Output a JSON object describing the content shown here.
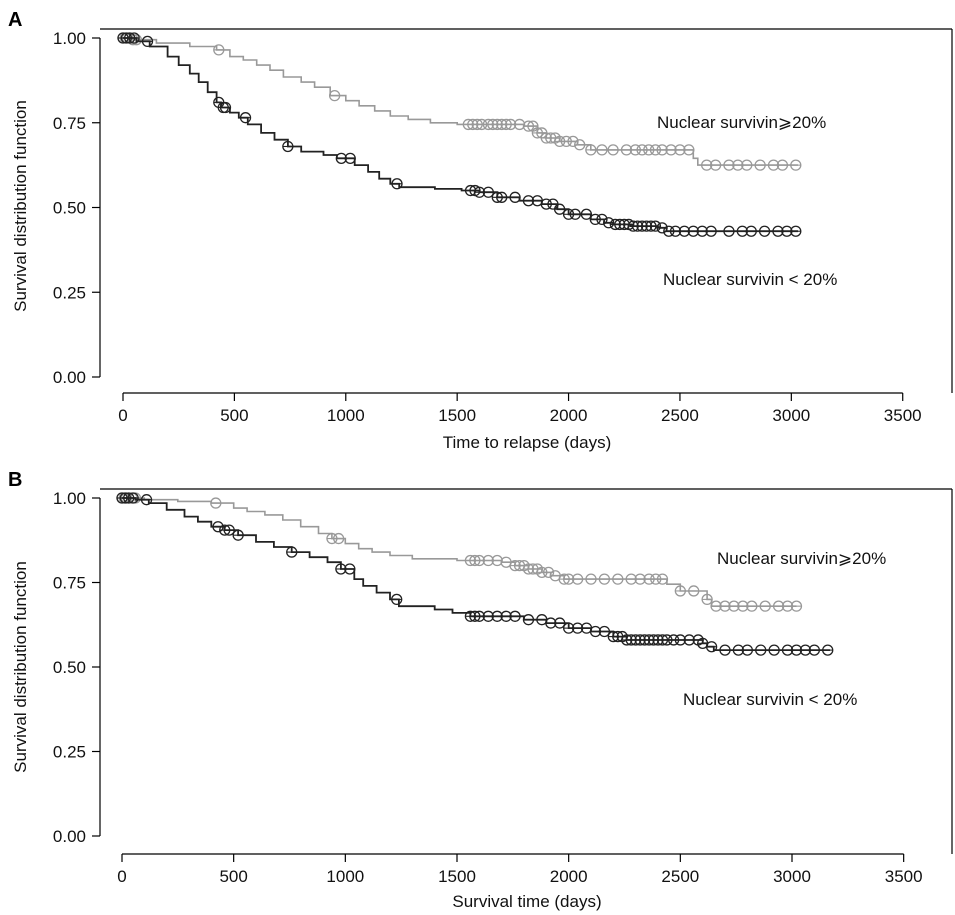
{
  "chart_data": [
    {
      "type": "line",
      "panel_label": "A",
      "xlabel": "Time to relapse (days)",
      "ylabel": "Survival distribution function",
      "xlim": [
        0,
        3600
      ],
      "ylim": [
        0,
        1
      ],
      "x_ticks": [
        0,
        500,
        1000,
        1500,
        2000,
        2500,
        3000,
        3500
      ],
      "y_ticks": [
        "0.00",
        "0.25",
        "0.50",
        "0.75",
        "1.00"
      ],
      "grid": false,
      "series": [
        {
          "name": "Nuclear survivin⩾20%",
          "color": "#999999",
          "steps": [
            [
              0,
              1.0
            ],
            [
              40,
              0.995
            ],
            [
              150,
              0.985
            ],
            [
              300,
              0.975
            ],
            [
              420,
              0.965
            ],
            [
              480,
              0.945
            ],
            [
              540,
              0.935
            ],
            [
              600,
              0.92
            ],
            [
              660,
              0.905
            ],
            [
              720,
              0.885
            ],
            [
              800,
              0.87
            ],
            [
              860,
              0.855
            ],
            [
              930,
              0.83
            ],
            [
              1000,
              0.815
            ],
            [
              1060,
              0.8
            ],
            [
              1130,
              0.785
            ],
            [
              1200,
              0.77
            ],
            [
              1280,
              0.76
            ],
            [
              1380,
              0.75
            ],
            [
              1500,
              0.745
            ],
            [
              1800,
              0.74
            ],
            [
              1860,
              0.72
            ],
            [
              1900,
              0.705
            ],
            [
              1960,
              0.695
            ],
            [
              2040,
              0.685
            ],
            [
              2100,
              0.67
            ],
            [
              2500,
              0.67
            ],
            [
              2560,
              0.645
            ],
            [
              2580,
              0.625
            ],
            [
              3030,
              0.625
            ]
          ],
          "censored": [
            0,
            10,
            20,
            30,
            45,
            60,
            430,
            950,
            1550,
            1570,
            1590,
            1610,
            1640,
            1660,
            1680,
            1700,
            1720,
            1740,
            1780,
            1820,
            1840,
            1860,
            1880,
            1900,
            1920,
            1940,
            1960,
            1990,
            2020,
            2050,
            2100,
            2150,
            2200,
            2260,
            2300,
            2330,
            2360,
            2390,
            2420,
            2460,
            2500,
            2540,
            2620,
            2660,
            2720,
            2760,
            2800,
            2860,
            2920,
            2960,
            3020
          ],
          "end_label": "Nuclear survivin⩾20%"
        },
        {
          "name": "Nuclear survivin < 20%",
          "color": "#222222",
          "steps": [
            [
              0,
              1.0
            ],
            [
              60,
              0.99
            ],
            [
              120,
              0.975
            ],
            [
              200,
              0.945
            ],
            [
              250,
              0.92
            ],
            [
              300,
              0.895
            ],
            [
              340,
              0.87
            ],
            [
              380,
              0.84
            ],
            [
              420,
              0.81
            ],
            [
              440,
              0.795
            ],
            [
              480,
              0.78
            ],
            [
              520,
              0.765
            ],
            [
              560,
              0.745
            ],
            [
              620,
              0.72
            ],
            [
              680,
              0.7
            ],
            [
              740,
              0.68
            ],
            [
              800,
              0.665
            ],
            [
              900,
              0.655
            ],
            [
              960,
              0.645
            ],
            [
              1040,
              0.625
            ],
            [
              1100,
              0.605
            ],
            [
              1150,
              0.585
            ],
            [
              1200,
              0.57
            ],
            [
              1240,
              0.56
            ],
            [
              1400,
              0.555
            ],
            [
              1520,
              0.55
            ],
            [
              1600,
              0.545
            ],
            [
              1680,
              0.53
            ],
            [
              1780,
              0.52
            ],
            [
              1880,
              0.51
            ],
            [
              1950,
              0.495
            ],
            [
              2000,
              0.48
            ],
            [
              2100,
              0.465
            ],
            [
              2160,
              0.455
            ],
            [
              2200,
              0.45
            ],
            [
              2280,
              0.445
            ],
            [
              2400,
              0.44
            ],
            [
              2440,
              0.43
            ],
            [
              3030,
              0.43
            ]
          ],
          "censored": [
            0,
            15,
            30,
            50,
            110,
            430,
            450,
            460,
            550,
            740,
            980,
            1020,
            1230,
            1560,
            1580,
            1600,
            1640,
            1680,
            1700,
            1760,
            1820,
            1860,
            1900,
            1930,
            1960,
            2000,
            2030,
            2080,
            2120,
            2150,
            2180,
            2210,
            2230,
            2250,
            2270,
            2290,
            2310,
            2330,
            2350,
            2370,
            2390,
            2420,
            2450,
            2480,
            2520,
            2560,
            2600,
            2640,
            2720,
            2780,
            2820,
            2880,
            2940,
            2980,
            3020
          ],
          "end_label": "Nuclear survivin < 20%"
        }
      ]
    },
    {
      "type": "line",
      "panel_label": "B",
      "xlabel": "Survival time (days)",
      "ylabel": "Survival distribution function",
      "xlim": [
        0,
        3600
      ],
      "ylim": [
        0,
        1
      ],
      "x_ticks": [
        0,
        500,
        1000,
        1500,
        2000,
        2500,
        3000,
        3500
      ],
      "y_ticks": [
        "0.00",
        "0.25",
        "0.50",
        "0.75",
        "1.00"
      ],
      "grid": false,
      "series": [
        {
          "name": "Nuclear survivin⩾20%",
          "color": "#999999",
          "steps": [
            [
              0,
              1.0
            ],
            [
              100,
              0.995
            ],
            [
              250,
              0.99
            ],
            [
              400,
              0.985
            ],
            [
              500,
              0.97
            ],
            [
              560,
              0.96
            ],
            [
              640,
              0.95
            ],
            [
              720,
              0.935
            ],
            [
              800,
              0.915
            ],
            [
              880,
              0.895
            ],
            [
              940,
              0.88
            ],
            [
              1000,
              0.865
            ],
            [
              1060,
              0.85
            ],
            [
              1120,
              0.84
            ],
            [
              1200,
              0.83
            ],
            [
              1300,
              0.82
            ],
            [
              1500,
              0.815
            ],
            [
              1700,
              0.81
            ],
            [
              1760,
              0.8
            ],
            [
              1820,
              0.79
            ],
            [
              1880,
              0.78
            ],
            [
              1920,
              0.77
            ],
            [
              1980,
              0.76
            ],
            [
              2420,
              0.76
            ],
            [
              2440,
              0.745
            ],
            [
              2500,
              0.725
            ],
            [
              2620,
              0.7
            ],
            [
              2640,
              0.68
            ],
            [
              3020,
              0.68
            ]
          ],
          "censored": [
            0,
            10,
            20,
            30,
            45,
            60,
            420,
            940,
            970,
            1560,
            1580,
            1600,
            1640,
            1680,
            1720,
            1760,
            1780,
            1800,
            1820,
            1840,
            1860,
            1880,
            1910,
            1940,
            1980,
            2000,
            2040,
            2100,
            2160,
            2220,
            2280,
            2320,
            2360,
            2390,
            2420,
            2500,
            2560,
            2620,
            2660,
            2700,
            2740,
            2780,
            2820,
            2880,
            2940,
            2980,
            3020
          ],
          "end_label": "Nuclear survivin⩾20%"
        },
        {
          "name": "Nuclear survivin < 20%",
          "color": "#222222",
          "steps": [
            [
              0,
              1.0
            ],
            [
              60,
              0.995
            ],
            [
              120,
              0.985
            ],
            [
              200,
              0.965
            ],
            [
              280,
              0.945
            ],
            [
              340,
              0.93
            ],
            [
              400,
              0.915
            ],
            [
              460,
              0.905
            ],
            [
              520,
              0.89
            ],
            [
              600,
              0.87
            ],
            [
              680,
              0.855
            ],
            [
              760,
              0.84
            ],
            [
              840,
              0.825
            ],
            [
              920,
              0.81
            ],
            [
              980,
              0.79
            ],
            [
              1040,
              0.76
            ],
            [
              1080,
              0.74
            ],
            [
              1140,
              0.72
            ],
            [
              1200,
              0.7
            ],
            [
              1240,
              0.68
            ],
            [
              1400,
              0.67
            ],
            [
              1480,
              0.66
            ],
            [
              1560,
              0.65
            ],
            [
              1800,
              0.64
            ],
            [
              1900,
              0.63
            ],
            [
              2000,
              0.615
            ],
            [
              2100,
              0.605
            ],
            [
              2200,
              0.59
            ],
            [
              2260,
              0.58
            ],
            [
              2600,
              0.57
            ],
            [
              2620,
              0.56
            ],
            [
              2650,
              0.55
            ],
            [
              3170,
              0.55
            ]
          ],
          "censored": [
            0,
            15,
            30,
            50,
            110,
            430,
            460,
            480,
            520,
            760,
            980,
            1020,
            1230,
            1560,
            1580,
            1600,
            1640,
            1680,
            1720,
            1760,
            1820,
            1880,
            1920,
            1960,
            2000,
            2040,
            2080,
            2120,
            2160,
            2200,
            2220,
            2240,
            2260,
            2280,
            2300,
            2320,
            2340,
            2360,
            2380,
            2400,
            2420,
            2440,
            2470,
            2500,
            2540,
            2580,
            2600,
            2640,
            2700,
            2760,
            2800,
            2860,
            2920,
            2980,
            3020,
            3060,
            3100,
            3160
          ],
          "end_label": "Nuclear survivin < 20%"
        }
      ]
    }
  ]
}
